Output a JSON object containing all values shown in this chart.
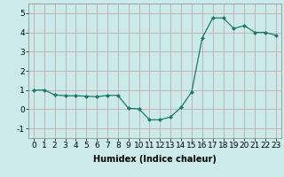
{
  "x": [
    0,
    1,
    2,
    3,
    4,
    5,
    6,
    7,
    8,
    9,
    10,
    11,
    12,
    13,
    14,
    15,
    16,
    17,
    18,
    19,
    20,
    21,
    22,
    23
  ],
  "y": [
    1.0,
    1.0,
    0.75,
    0.7,
    0.7,
    0.68,
    0.65,
    0.72,
    0.72,
    0.05,
    0.02,
    -0.55,
    -0.55,
    -0.4,
    0.1,
    0.9,
    3.7,
    4.75,
    4.75,
    4.2,
    4.35,
    4.0,
    4.0,
    3.85
  ],
  "line_color": "#1a7a6a",
  "marker": "D",
  "marker_size": 2,
  "bg_color": "#cceaea",
  "grid_color": "#c0a0a0",
  "xlabel": "Humidex (Indice chaleur)",
  "xlim": [
    -0.5,
    23.5
  ],
  "ylim": [
    -1.5,
    5.5
  ],
  "yticks": [
    -1,
    0,
    1,
    2,
    3,
    4,
    5
  ],
  "xticks": [
    0,
    1,
    2,
    3,
    4,
    5,
    6,
    7,
    8,
    9,
    10,
    11,
    12,
    13,
    14,
    15,
    16,
    17,
    18,
    19,
    20,
    21,
    22,
    23
  ],
  "label_fontsize": 7,
  "tick_fontsize": 6.5
}
